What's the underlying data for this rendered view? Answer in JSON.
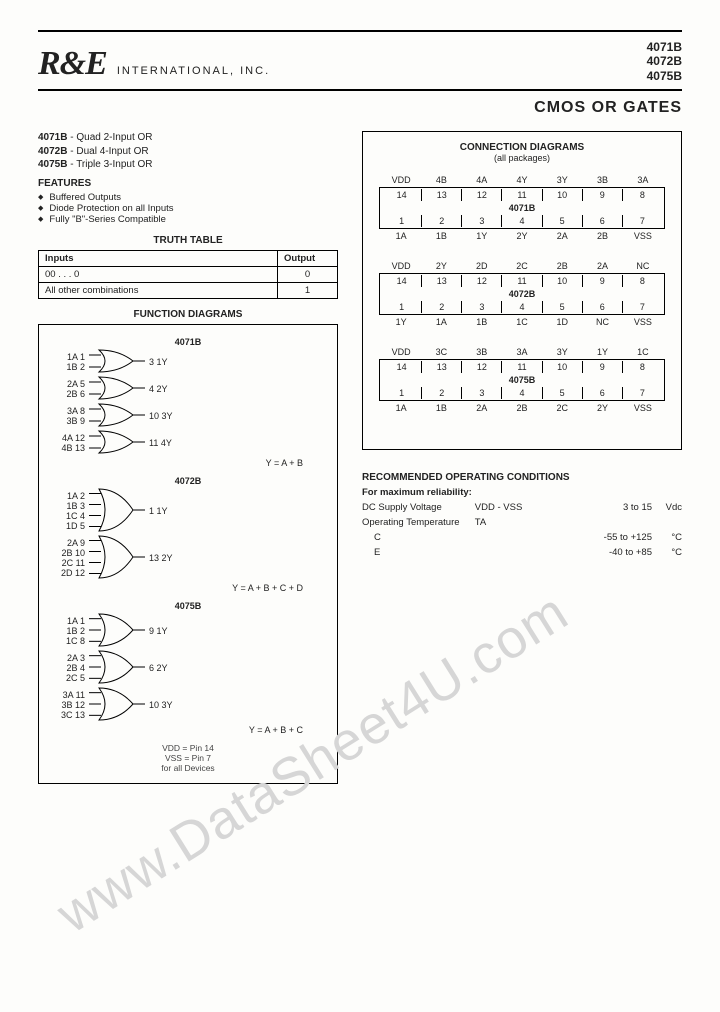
{
  "brand": {
    "name": "R&E",
    "subtitle": "INTERNATIONAL, INC."
  },
  "part_numbers": [
    "4071B",
    "4072B",
    "4075B"
  ],
  "page_title": "CMOS OR GATES",
  "variants": [
    {
      "pn": "4071B",
      "desc": "Quad 2-Input OR"
    },
    {
      "pn": "4072B",
      "desc": "Dual 4-Input OR"
    },
    {
      "pn": "4075B",
      "desc": "Triple 3-Input OR"
    }
  ],
  "features_heading": "FEATURES",
  "features": [
    "Buffered Outputs",
    "Diode Protection on all Inputs",
    "Fully \"B\"-Series Compatible"
  ],
  "truth_table": {
    "heading": "TRUTH TABLE",
    "head_in": "Inputs",
    "head_out": "Output",
    "rows": [
      {
        "in": "00 . . . 0",
        "out": "0"
      },
      {
        "in": "All other combinations",
        "out": "1"
      }
    ]
  },
  "function_diagrams": {
    "heading": "FUNCTION DIAGRAMS",
    "chips": [
      {
        "name": "4071B",
        "n_inputs": 2,
        "gates": [
          {
            "in": [
              "1A  1",
              "1B  2"
            ],
            "out": "3   1Y"
          },
          {
            "in": [
              "2A  5",
              "2B  6"
            ],
            "out": "4   2Y"
          },
          {
            "in": [
              "3A  8",
              "3B  9"
            ],
            "out": "10  3Y"
          },
          {
            "in": [
              "4A 12",
              "4B 13"
            ],
            "out": "11  4Y"
          }
        ],
        "equation": "Y = A + B"
      },
      {
        "name": "4072B",
        "n_inputs": 4,
        "gates": [
          {
            "in": [
              "1A  2",
              "1B  3",
              "1C  4",
              "1D  5"
            ],
            "out": "1   1Y"
          },
          {
            "in": [
              "2A  9",
              "2B 10",
              "2C 11",
              "2D 12"
            ],
            "out": "13  2Y"
          }
        ],
        "equation": "Y = A + B + C + D"
      },
      {
        "name": "4075B",
        "n_inputs": 3,
        "gates": [
          {
            "in": [
              "1A  1",
              "1B  2",
              "1C  8"
            ],
            "out": "9   1Y"
          },
          {
            "in": [
              "2A  3",
              "2B  4",
              "2C  5"
            ],
            "out": "6   2Y"
          },
          {
            "in": [
              "3A 11",
              "3B 12",
              "3C 13"
            ],
            "out": "10  3Y"
          }
        ],
        "equation": "Y = A + B + C"
      }
    ],
    "vnote1": "VDD = Pin 14",
    "vnote2": "VSS = Pin  7",
    "vnote3": "for all Devices"
  },
  "connection_diagrams": {
    "heading": "CONNECTION DIAGRAMS",
    "sub": "(all packages)",
    "packages": [
      {
        "name": "4071B",
        "top_lbl": [
          "VDD",
          "4B",
          "4A",
          "4Y",
          "3Y",
          "3B",
          "3A"
        ],
        "top_pin": [
          "14",
          "13",
          "12",
          "11",
          "10",
          "9",
          "8"
        ],
        "bot_pin": [
          "1",
          "2",
          "3",
          "4",
          "5",
          "6",
          "7"
        ],
        "bot_lbl": [
          "1A",
          "1B",
          "1Y",
          "2Y",
          "2A",
          "2B",
          "VSS"
        ]
      },
      {
        "name": "4072B",
        "top_lbl": [
          "VDD",
          "2Y",
          "2D",
          "2C",
          "2B",
          "2A",
          "NC"
        ],
        "top_pin": [
          "14",
          "13",
          "12",
          "11",
          "10",
          "9",
          "8"
        ],
        "bot_pin": [
          "1",
          "2",
          "3",
          "4",
          "5",
          "6",
          "7"
        ],
        "bot_lbl": [
          "1Y",
          "1A",
          "1B",
          "1C",
          "1D",
          "NC",
          "VSS"
        ]
      },
      {
        "name": "4075B",
        "top_lbl": [
          "VDD",
          "3C",
          "3B",
          "3A",
          "3Y",
          "1Y",
          "1C"
        ],
        "top_pin": [
          "14",
          "13",
          "12",
          "11",
          "10",
          "9",
          "8"
        ],
        "bot_pin": [
          "1",
          "2",
          "3",
          "4",
          "5",
          "6",
          "7"
        ],
        "bot_lbl": [
          "1A",
          "1B",
          "2A",
          "2B",
          "2C",
          "2Y",
          "VSS"
        ]
      }
    ]
  },
  "roc": {
    "heading": "RECOMMENDED OPERATING CONDITIONS",
    "sub": "For maximum reliability:",
    "rows": [
      {
        "l": "DC Supply Voltage",
        "m": "VDD - VSS",
        "r": "3 to 15",
        "u": "Vdc"
      },
      {
        "l": "Operating Temperature",
        "m": "TA",
        "r": "",
        "u": ""
      },
      {
        "l": "C",
        "m": "",
        "r": "-55 to +125",
        "u": "°C",
        "indent": true
      },
      {
        "l": "E",
        "m": "",
        "r": "-40 to +85",
        "u": "°C",
        "indent": true
      }
    ]
  },
  "watermark": "www.DataSheet4U.com",
  "colors": {
    "ink": "#222222",
    "rule": "#000000",
    "bg": "#fdfdfb",
    "wm": "#d6d6d6"
  }
}
